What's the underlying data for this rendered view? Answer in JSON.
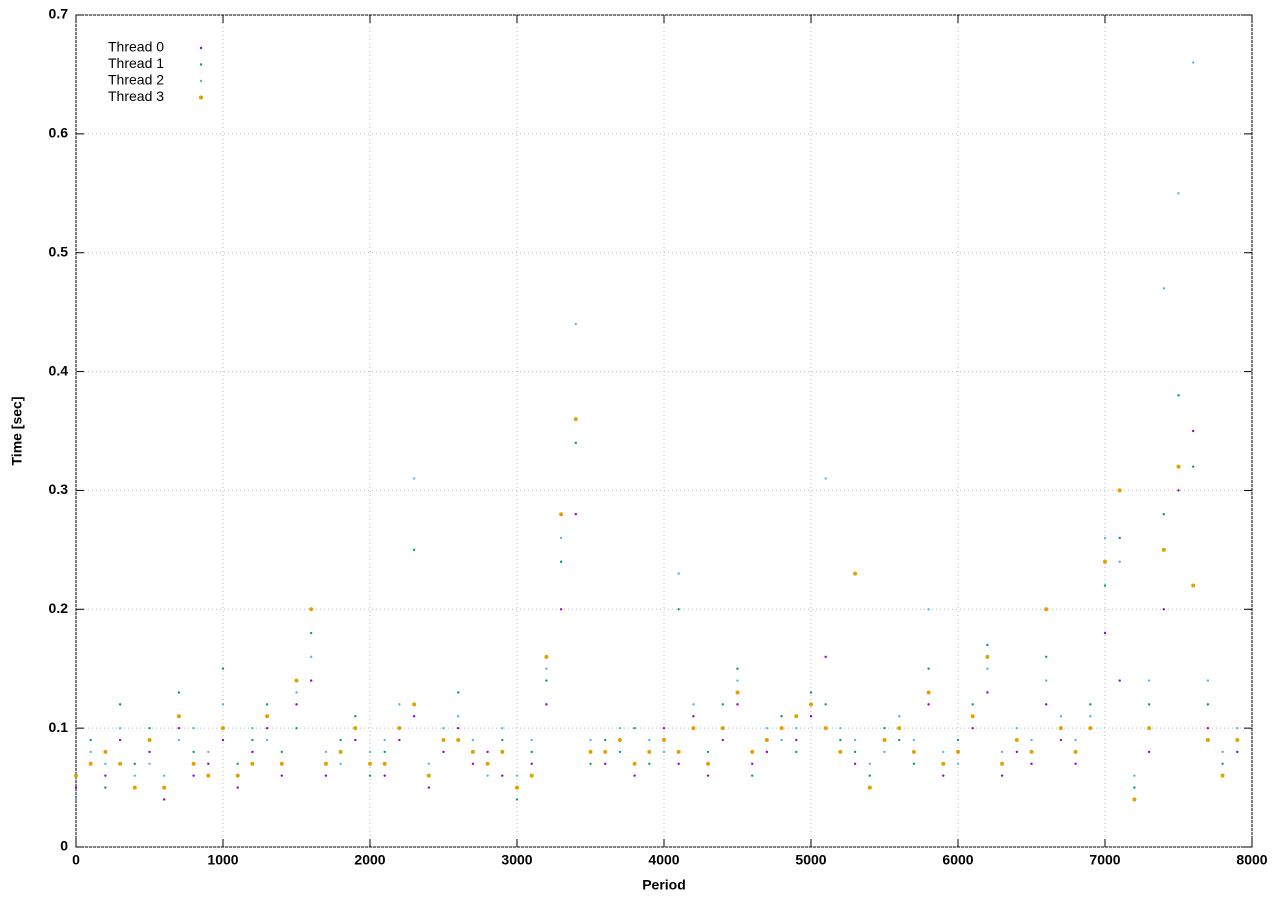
{
  "chart_data": {
    "type": "scatter",
    "xlabel": "Period",
    "ylabel": "Time [sec]",
    "xlim": [
      0,
      8000
    ],
    "ylim": [
      0,
      0.7
    ],
    "xticks": [
      0,
      1000,
      2000,
      3000,
      4000,
      5000,
      6000,
      7000,
      8000
    ],
    "yticks": [
      0,
      0.1,
      0.2,
      0.3,
      0.4,
      0.5,
      0.6,
      0.7
    ],
    "grid": true,
    "legend": "top-left",
    "x": [
      0,
      100,
      200,
      300,
      400,
      500,
      600,
      700,
      800,
      900,
      1000,
      1100,
      1200,
      1300,
      1400,
      1500,
      1600,
      1700,
      1800,
      1900,
      2000,
      2100,
      2200,
      2300,
      2400,
      2500,
      2600,
      2700,
      2800,
      2900,
      3000,
      3100,
      3200,
      3300,
      3400,
      3500,
      3600,
      3700,
      3800,
      3900,
      4000,
      4100,
      4200,
      4300,
      4400,
      4500,
      4600,
      4700,
      4800,
      4900,
      5000,
      5100,
      5200,
      5300,
      5400,
      5500,
      5600,
      5700,
      5800,
      5900,
      6000,
      6100,
      6200,
      6300,
      6400,
      6500,
      6600,
      6700,
      6800,
      6900,
      7000,
      7100,
      7200,
      7300,
      7400,
      7500,
      7600,
      7700,
      7800,
      7900
    ],
    "series": [
      {
        "name": "Thread 0",
        "color": "#9400d3",
        "values": [
          0.05,
          0.07,
          0.06,
          0.09,
          0.05,
          0.08,
          0.04,
          0.1,
          0.06,
          0.07,
          0.09,
          0.05,
          0.08,
          0.1,
          0.06,
          0.12,
          0.14,
          0.06,
          0.08,
          0.09,
          0.07,
          0.06,
          0.09,
          0.11,
          0.05,
          0.08,
          0.1,
          0.07,
          0.08,
          0.06,
          0.05,
          0.07,
          0.12,
          0.2,
          0.28,
          0.08,
          0.07,
          0.09,
          0.06,
          0.08,
          0.1,
          0.07,
          0.11,
          0.06,
          0.09,
          0.12,
          0.07,
          0.08,
          0.1,
          0.09,
          0.11,
          0.16,
          0.08,
          0.07,
          0.05,
          0.09,
          0.1,
          0.08,
          0.12,
          0.06,
          0.08,
          0.1,
          0.13,
          0.06,
          0.08,
          0.07,
          0.12,
          0.09,
          0.07,
          0.1,
          0.18,
          0.14,
          0.04,
          0.08,
          0.2,
          0.3,
          0.35,
          0.1,
          0.06,
          0.08
        ]
      },
      {
        "name": "Thread 1",
        "color": "#009e73",
        "values": [
          0.06,
          0.09,
          0.05,
          0.12,
          0.07,
          0.1,
          0.05,
          0.13,
          0.08,
          0.06,
          0.15,
          0.07,
          0.09,
          0.12,
          0.08,
          0.1,
          0.18,
          0.07,
          0.09,
          0.11,
          0.06,
          0.08,
          0.1,
          0.25,
          0.06,
          0.09,
          0.13,
          0.08,
          0.07,
          0.09,
          0.04,
          0.08,
          0.14,
          0.24,
          0.34,
          0.07,
          0.09,
          0.08,
          0.1,
          0.07,
          0.09,
          0.2,
          0.1,
          0.08,
          0.12,
          0.15,
          0.06,
          0.09,
          0.11,
          0.08,
          0.13,
          0.12,
          0.09,
          0.08,
          0.06,
          0.1,
          0.09,
          0.07,
          0.15,
          0.07,
          0.09,
          0.12,
          0.17,
          0.07,
          0.09,
          0.08,
          0.16,
          0.1,
          0.08,
          0.12,
          0.22,
          0.26,
          0.05,
          0.12,
          0.28,
          0.38,
          0.32,
          0.12,
          0.07,
          0.09
        ]
      },
      {
        "name": "Thread 2",
        "color": "#56b4e9",
        "values": [
          0.04,
          0.08,
          0.07,
          0.1,
          0.06,
          0.07,
          0.06,
          0.09,
          0.1,
          0.08,
          0.12,
          0.06,
          0.1,
          0.09,
          0.07,
          0.13,
          0.16,
          0.08,
          0.07,
          0.1,
          0.08,
          0.09,
          0.12,
          0.31,
          0.07,
          0.1,
          0.11,
          0.09,
          0.06,
          0.1,
          0.06,
          0.09,
          0.15,
          0.26,
          0.44,
          0.09,
          0.08,
          0.1,
          0.07,
          0.09,
          0.08,
          0.23,
          0.12,
          0.07,
          0.1,
          0.14,
          0.08,
          0.1,
          0.09,
          0.1,
          0.12,
          0.31,
          0.1,
          0.09,
          0.07,
          0.08,
          0.11,
          0.09,
          0.2,
          0.08,
          0.07,
          0.11,
          0.15,
          0.08,
          0.1,
          0.09,
          0.14,
          0.11,
          0.09,
          0.11,
          0.26,
          0.24,
          0.06,
          0.14,
          0.47,
          0.55,
          0.66,
          0.14,
          0.08,
          0.1
        ]
      },
      {
        "name": "Thread 3",
        "color": "#e69f00",
        "values": [
          0.06,
          0.07,
          0.08,
          0.07,
          0.05,
          0.09,
          0.05,
          0.11,
          0.07,
          0.06,
          0.1,
          0.06,
          0.07,
          0.11,
          0.07,
          0.14,
          0.2,
          0.07,
          0.08,
          0.1,
          0.07,
          0.07,
          0.1,
          0.12,
          0.06,
          0.09,
          0.09,
          0.08,
          0.07,
          0.08,
          0.05,
          0.06,
          0.16,
          0.28,
          0.36,
          0.08,
          0.08,
          0.09,
          0.07,
          0.08,
          0.09,
          0.08,
          0.1,
          0.07,
          0.1,
          0.13,
          0.08,
          0.09,
          0.1,
          0.11,
          0.12,
          0.1,
          0.08,
          0.23,
          0.05,
          0.09,
          0.1,
          0.08,
          0.13,
          0.07,
          0.08,
          0.11,
          0.16,
          0.07,
          0.09,
          0.08,
          0.2,
          0.1,
          0.08,
          0.1,
          0.24,
          0.3,
          0.04,
          0.1,
          0.25,
          0.32,
          0.22,
          0.09,
          0.06,
          0.09
        ]
      }
    ]
  }
}
